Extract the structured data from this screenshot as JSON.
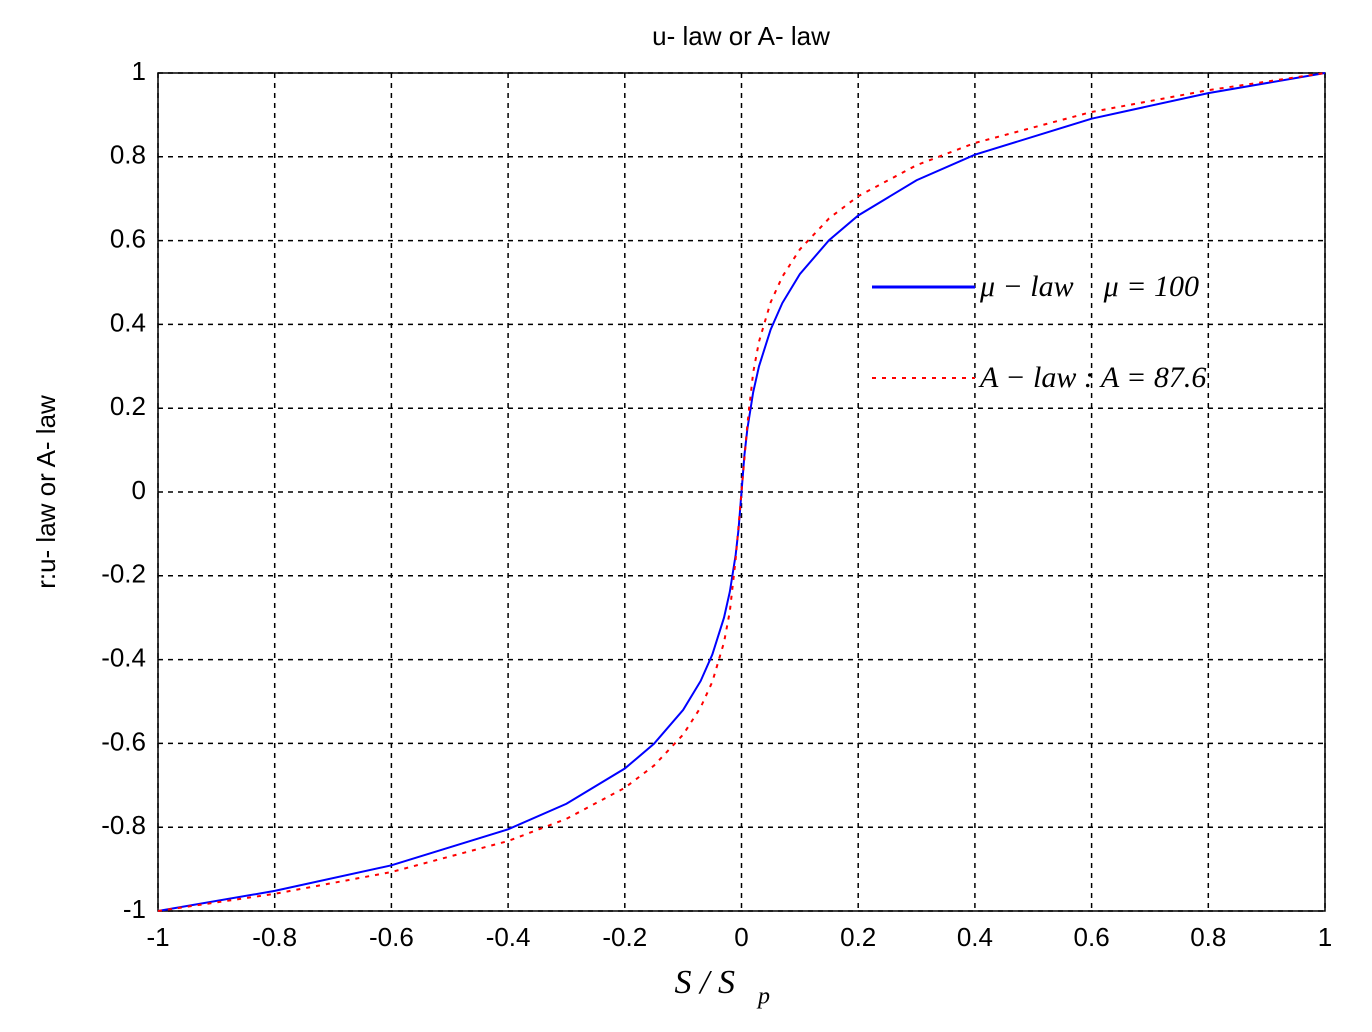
{
  "chart_data": {
    "type": "line",
    "title": "u- law or A- law",
    "y_label": "r:u- law or A- law",
    "x_label": "S / S",
    "x_label_sub": "p",
    "x": [
      -1,
      -0.8,
      -0.6,
      -0.4,
      -0.3,
      -0.2,
      -0.15,
      -0.1,
      -0.07,
      -0.05,
      -0.03,
      -0.02,
      -0.01,
      -0.005,
      0,
      0.005,
      0.01,
      0.02,
      0.03,
      0.05,
      0.07,
      0.1,
      0.15,
      0.2,
      0.3,
      0.4,
      0.6,
      0.8,
      1
    ],
    "series": [
      {
        "name": "μ − law    μ = 100",
        "color": "#0000ff",
        "style": "solid",
        "values": [
          -1,
          -0.952,
          -0.891,
          -0.805,
          -0.744,
          -0.66,
          -0.601,
          -0.52,
          -0.451,
          -0.388,
          -0.3,
          -0.238,
          -0.15,
          -0.088,
          0,
          0.088,
          0.15,
          0.238,
          0.3,
          0.388,
          0.451,
          0.52,
          0.601,
          0.66,
          0.744,
          0.805,
          0.891,
          0.952,
          1
        ]
      },
      {
        "name": "A − law : A = 87.6",
        "color": "#ff0000",
        "style": "dotted",
        "values": [
          -1,
          -0.959,
          -0.907,
          -0.833,
          -0.78,
          -0.706,
          -0.653,
          -0.579,
          -0.514,
          -0.453,
          -0.359,
          -0.285,
          -0.16,
          -0.08,
          0,
          0.08,
          0.16,
          0.285,
          0.359,
          0.453,
          0.514,
          0.579,
          0.653,
          0.706,
          0.78,
          0.833,
          0.907,
          0.959,
          1
        ]
      }
    ],
    "xlim": [
      -1,
      1
    ],
    "xticks": [
      -1,
      -0.8,
      -0.6,
      -0.4,
      -0.2,
      0,
      0.2,
      0.4,
      0.6,
      0.8,
      1
    ],
    "ylim": [
      -1,
      1
    ],
    "yticks": [
      -1,
      -0.8,
      -0.6,
      -0.4,
      -0.2,
      0,
      0.2,
      0.4,
      0.6,
      0.8,
      1
    ],
    "grid": true
  }
}
